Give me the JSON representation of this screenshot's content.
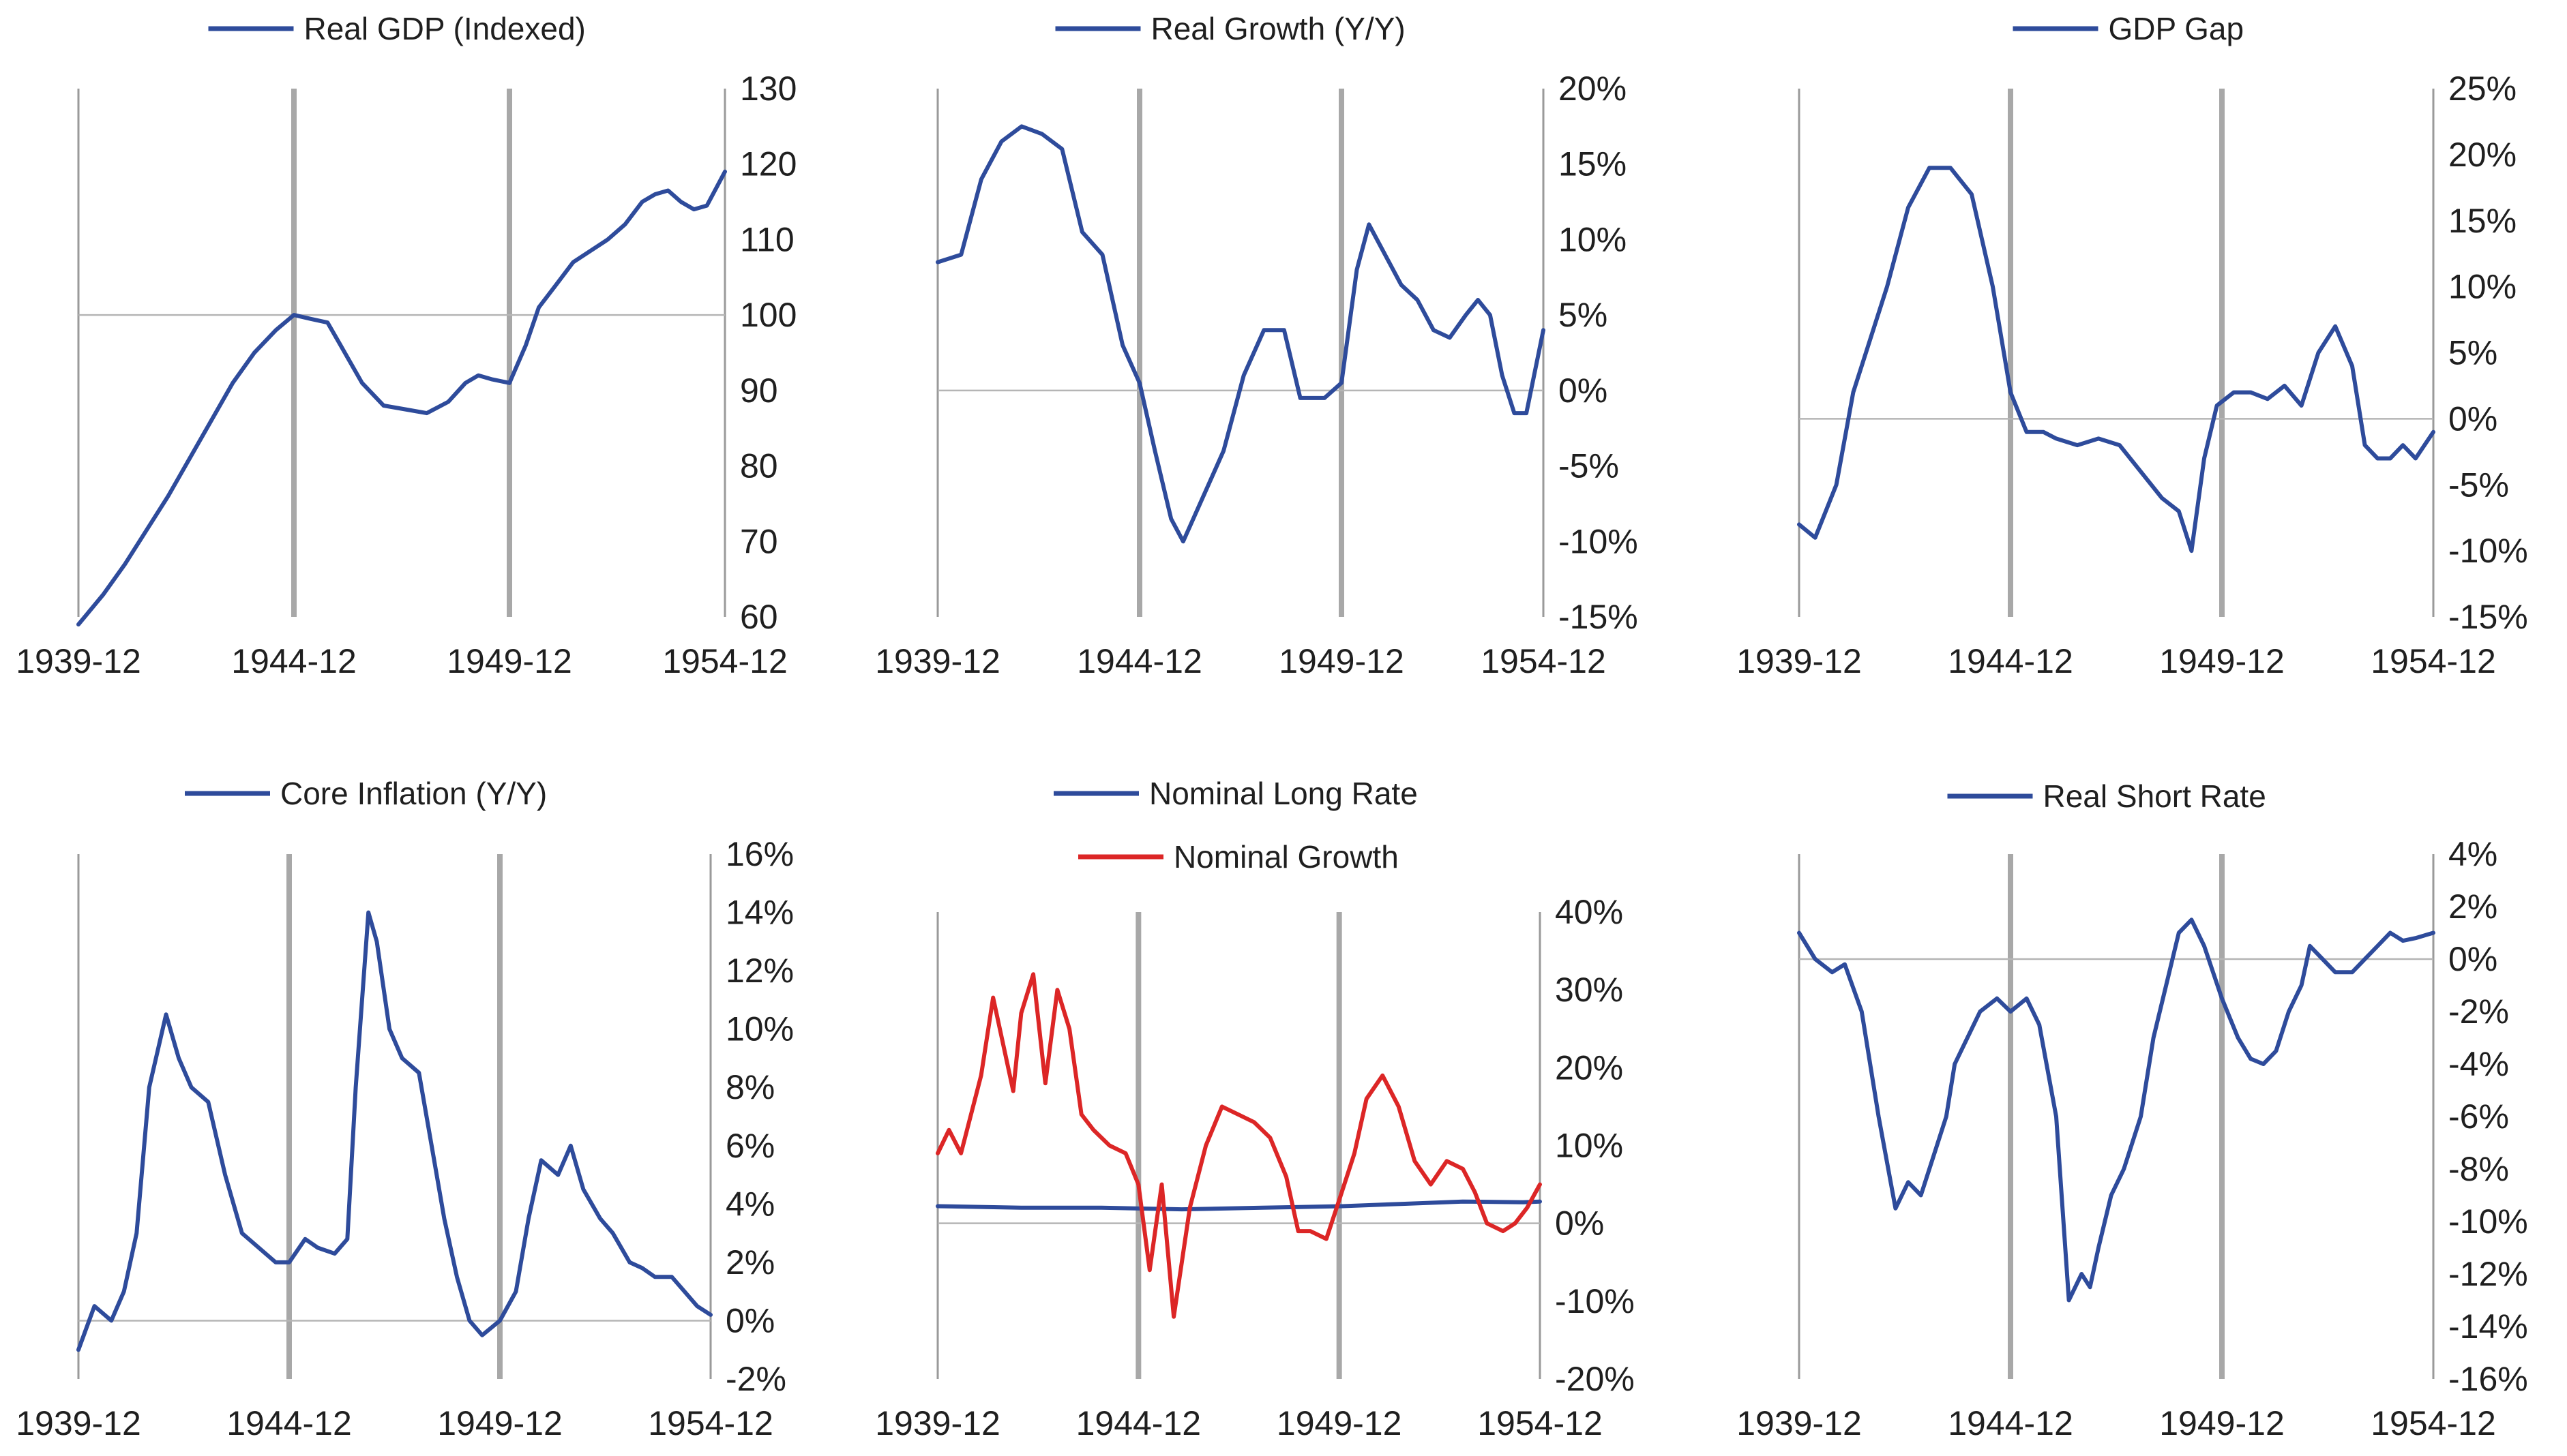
{
  "chart_data": [
    {
      "type": "line",
      "x_tick_labels": [
        "1939-12",
        "1944-12",
        "1949-12",
        "1954-12"
      ],
      "xlim": [
        1939.92,
        1954.92
      ],
      "ylim": [
        60,
        130
      ],
      "y_ticks": [
        60,
        70,
        80,
        90,
        100,
        110,
        120,
        130
      ],
      "y_tick_suffix": "",
      "baseline": 100,
      "series": [
        {
          "name": "Real GDP (Indexed)",
          "color": "#2e4b9b",
          "x": [
            1939.92,
            1940.5,
            1941.0,
            1941.5,
            1942.0,
            1942.5,
            1943.0,
            1943.5,
            1944.0,
            1944.5,
            1944.92,
            1945.3,
            1945.7,
            1946.0,
            1946.5,
            1947.0,
            1947.5,
            1948.0,
            1948.5,
            1948.9,
            1949.2,
            1949.5,
            1949.92,
            1950.3,
            1950.6,
            1951.0,
            1951.4,
            1951.8,
            1952.2,
            1952.6,
            1953.0,
            1953.3,
            1953.6,
            1953.9,
            1954.2,
            1954.5,
            1954.92
          ],
          "values": [
            59,
            63,
            67,
            71.5,
            76,
            81,
            86,
            91,
            95,
            98,
            100,
            99.5,
            99,
            96,
            91,
            88,
            87.5,
            87,
            88.5,
            91,
            92,
            91.5,
            91,
            96,
            101,
            104,
            107,
            108.5,
            110,
            112,
            115,
            116,
            116.5,
            115,
            114,
            114.5,
            119
          ]
        }
      ]
    },
    {
      "type": "line",
      "x_tick_labels": [
        "1939-12",
        "1944-12",
        "1949-12",
        "1954-12"
      ],
      "xlim": [
        1939.92,
        1954.92
      ],
      "ylim": [
        -15,
        20
      ],
      "y_ticks": [
        -15,
        -10,
        -5,
        0,
        5,
        10,
        15,
        20
      ],
      "y_tick_suffix": "%",
      "baseline": 0,
      "series": [
        {
          "name": "Real Growth (Y/Y)",
          "color": "#2e4b9b",
          "x": [
            1939.92,
            1940.5,
            1941.0,
            1941.5,
            1942.0,
            1942.5,
            1943.0,
            1943.5,
            1944.0,
            1944.5,
            1944.92,
            1945.3,
            1945.7,
            1946.0,
            1946.5,
            1947.0,
            1947.5,
            1948.0,
            1948.5,
            1948.9,
            1949.2,
            1949.5,
            1949.92,
            1950.3,
            1950.6,
            1951.0,
            1951.4,
            1951.8,
            1952.2,
            1952.6,
            1953.0,
            1953.3,
            1953.6,
            1953.9,
            1954.2,
            1954.5,
            1954.92
          ],
          "values": [
            8.5,
            9,
            14,
            16.5,
            17.5,
            17,
            16,
            10.5,
            9,
            3,
            0.5,
            -4,
            -8.5,
            -10,
            -7,
            -4,
            1,
            4,
            4,
            -0.5,
            -0.5,
            -0.5,
            0.5,
            8,
            11,
            9,
            7,
            6,
            4,
            3.5,
            5,
            6,
            5,
            1,
            -1.5,
            -1.5,
            4
          ]
        }
      ]
    },
    {
      "type": "line",
      "x_tick_labels": [
        "1939-12",
        "1944-12",
        "1949-12",
        "1954-12"
      ],
      "xlim": [
        1939.92,
        1954.92
      ],
      "ylim": [
        -15,
        25
      ],
      "y_ticks": [
        -15,
        -10,
        -5,
        0,
        5,
        10,
        15,
        20,
        25
      ],
      "y_tick_suffix": "%",
      "baseline": 0,
      "series": [
        {
          "name": "GDP Gap",
          "color": "#2e4b9b",
          "x": [
            1939.92,
            1940.3,
            1940.8,
            1941.2,
            1941.6,
            1942.0,
            1942.5,
            1943.0,
            1943.5,
            1944.0,
            1944.5,
            1944.92,
            1945.3,
            1945.7,
            1946.0,
            1946.5,
            1947.0,
            1947.5,
            1948.0,
            1948.5,
            1948.9,
            1949.2,
            1949.5,
            1949.8,
            1950.2,
            1950.6,
            1951.0,
            1951.4,
            1951.8,
            1952.2,
            1952.6,
            1953.0,
            1953.3,
            1953.6,
            1953.9,
            1954.2,
            1954.5,
            1954.92
          ],
          "values": [
            -8,
            -9,
            -5,
            2,
            6,
            10,
            16,
            19,
            19,
            17,
            10,
            2,
            -1,
            -1,
            -1.5,
            -2,
            -1.5,
            -2,
            -4,
            -6,
            -7,
            -10,
            -3,
            1,
            2,
            2,
            1.5,
            2.5,
            1,
            5,
            7,
            4,
            -2,
            -3,
            -3,
            -2,
            -3,
            -1
          ]
        }
      ]
    },
    {
      "type": "line",
      "x_tick_labels": [
        "1939-12",
        "1944-12",
        "1949-12",
        "1954-12"
      ],
      "xlim": [
        1939.92,
        1954.92
      ],
      "ylim": [
        -2,
        16
      ],
      "y_ticks": [
        -2,
        0,
        2,
        4,
        6,
        8,
        10,
        12,
        14,
        16
      ],
      "y_tick_suffix": "%",
      "baseline": 0,
      "series": [
        {
          "name": "Core Inflation (Y/Y)",
          "color": "#2e4b9b",
          "x": [
            1939.92,
            1940.3,
            1940.7,
            1941.0,
            1941.3,
            1941.6,
            1942.0,
            1942.3,
            1942.6,
            1943.0,
            1943.4,
            1943.8,
            1944.2,
            1944.6,
            1944.92,
            1945.3,
            1945.6,
            1946.0,
            1946.3,
            1946.5,
            1946.8,
            1947.0,
            1947.3,
            1947.6,
            1948.0,
            1948.3,
            1948.6,
            1948.9,
            1949.2,
            1949.5,
            1949.92,
            1950.3,
            1950.6,
            1950.9,
            1951.3,
            1951.6,
            1951.9,
            1952.3,
            1952.6,
            1953.0,
            1953.3,
            1953.6,
            1954.0,
            1954.3,
            1954.6,
            1954.92
          ],
          "values": [
            -1,
            0.5,
            0,
            1,
            3,
            8,
            10.5,
            9,
            8,
            7.5,
            5,
            3,
            2.5,
            2,
            2,
            2.8,
            2.5,
            2.3,
            2.8,
            8,
            14,
            13,
            10,
            9,
            8.5,
            6,
            3.5,
            1.5,
            0,
            -0.5,
            0,
            1,
            3.5,
            5.5,
            5,
            6,
            4.5,
            3.5,
            3,
            2,
            1.8,
            1.5,
            1.5,
            1,
            0.5,
            0.2
          ]
        }
      ]
    },
    {
      "type": "line",
      "x_tick_labels": [
        "1939-12",
        "1944-12",
        "1949-12",
        "1954-12"
      ],
      "xlim": [
        1939.92,
        1954.92
      ],
      "ylim": [
        -20,
        40
      ],
      "y_ticks": [
        -20,
        -10,
        0,
        10,
        20,
        30,
        40
      ],
      "y_tick_suffix": "%",
      "baseline": 0,
      "series": [
        {
          "name": "Nominal Long Rate",
          "color": "#2e4b9b",
          "x": [
            1939.92,
            1942.0,
            1944.0,
            1946.0,
            1948.0,
            1950.0,
            1951.5,
            1953.0,
            1954.5,
            1954.92
          ],
          "values": [
            2.2,
            2.0,
            2.0,
            1.8,
            2.0,
            2.2,
            2.5,
            2.8,
            2.7,
            2.8
          ]
        },
        {
          "name": "Nominal Growth",
          "color": "#dc2626",
          "x": [
            1939.92,
            1940.2,
            1940.5,
            1941.0,
            1941.3,
            1941.8,
            1942.0,
            1942.3,
            1942.6,
            1942.9,
            1943.2,
            1943.5,
            1943.8,
            1944.2,
            1944.6,
            1944.92,
            1945.2,
            1945.5,
            1945.8,
            1946.2,
            1946.6,
            1947.0,
            1947.4,
            1947.8,
            1948.2,
            1948.6,
            1948.9,
            1949.2,
            1949.6,
            1949.92,
            1950.3,
            1950.6,
            1951.0,
            1951.4,
            1951.8,
            1952.2,
            1952.6,
            1953.0,
            1953.3,
            1953.6,
            1954.0,
            1954.3,
            1954.6,
            1954.92
          ],
          "values": [
            9,
            12,
            9,
            19,
            29,
            17,
            27,
            32,
            18,
            30,
            25,
            14,
            12,
            10,
            9,
            5,
            -6,
            5,
            -12,
            2,
            10,
            15,
            14,
            13,
            11,
            6,
            -1,
            -1,
            -2,
            3,
            9,
            16,
            19,
            15,
            8,
            5,
            8,
            7,
            4,
            0,
            -1,
            0,
            2,
            5
          ]
        }
      ]
    },
    {
      "type": "line",
      "x_tick_labels": [
        "1939-12",
        "1944-12",
        "1949-12",
        "1954-12"
      ],
      "xlim": [
        1939.92,
        1954.92
      ],
      "ylim": [
        -16,
        4
      ],
      "y_ticks": [
        -16,
        -14,
        -12,
        -10,
        -8,
        -6,
        -4,
        -2,
        0,
        2,
        4
      ],
      "y_tick_suffix": "%",
      "baseline": 0,
      "series": [
        {
          "name": "Real Short Rate",
          "color": "#2e4b9b",
          "x": [
            1939.92,
            1940.3,
            1940.7,
            1941.0,
            1941.4,
            1941.8,
            1942.2,
            1942.5,
            1942.8,
            1943.1,
            1943.4,
            1943.6,
            1943.9,
            1944.2,
            1944.6,
            1944.92,
            1945.3,
            1945.6,
            1946.0,
            1946.3,
            1946.6,
            1946.8,
            1947.0,
            1947.3,
            1947.6,
            1948.0,
            1948.3,
            1948.6,
            1948.9,
            1949.2,
            1949.5,
            1949.92,
            1950.3,
            1950.6,
            1950.9,
            1951.2,
            1951.5,
            1951.8,
            1952.0,
            1952.3,
            1952.6,
            1953.0,
            1953.3,
            1953.6,
            1953.9,
            1954.2,
            1954.5,
            1954.92
          ],
          "values": [
            1,
            0,
            -0.5,
            -0.2,
            -2,
            -6,
            -9.5,
            -8.5,
            -9,
            -7.5,
            -6,
            -4,
            -3,
            -2,
            -1.5,
            -2,
            -1.5,
            -2.5,
            -6,
            -13,
            -12,
            -12.5,
            -11,
            -9,
            -8,
            -6,
            -3,
            -1,
            1,
            1.5,
            0.5,
            -1.5,
            -3,
            -3.8,
            -4,
            -3.5,
            -2,
            -1,
            0.5,
            0,
            -0.5,
            -0.5,
            0,
            0.5,
            1,
            0.7,
            0.8,
            1
          ]
        }
      ]
    }
  ]
}
